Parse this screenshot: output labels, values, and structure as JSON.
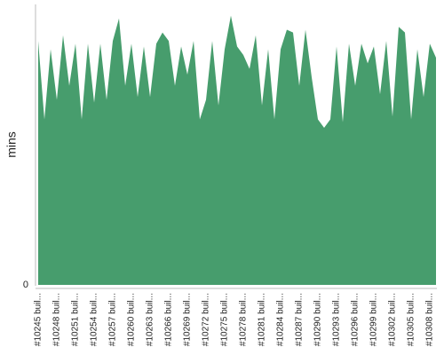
{
  "chart_data": {
    "type": "area",
    "y_label": "mins",
    "color": "#479d6d",
    "categories": [
      "#10245 buil...",
      null,
      null,
      "#10248 buil...",
      null,
      null,
      "#10251 buil...",
      null,
      null,
      "#10254 buil...",
      null,
      null,
      "#10257 buil...",
      null,
      null,
      "#10260 buil...",
      null,
      null,
      "#10263 buil...",
      null,
      null,
      "#10266 buil...",
      null,
      null,
      "#10269 buil...",
      null,
      null,
      "#10272 buil...",
      null,
      null,
      "#10275 buil...",
      null,
      null,
      "#10278 buil...",
      null,
      null,
      "#10281 buil...",
      null,
      null,
      "#10284 buil...",
      null,
      null,
      "#10287 buil...",
      null,
      null,
      "#10290 buil...",
      null,
      null,
      "#10293 buil...",
      null,
      null,
      "#10296 buil...",
      null,
      null,
      "#10299 buil...",
      null,
      null,
      "#10302 buil...",
      null,
      null,
      "#10305 buil...",
      null,
      null,
      "#10308 buil...",
      null
    ],
    "values": [
      8.7,
      5.9,
      8.4,
      6.6,
      8.9,
      7.1,
      8.6,
      5.9,
      8.6,
      6.5,
      8.6,
      6.6,
      8.7,
      9.5,
      7.1,
      8.6,
      6.7,
      8.5,
      6.7,
      8.6,
      9.0,
      8.7,
      7.1,
      8.5,
      7.5,
      8.7,
      5.9,
      6.6,
      8.7,
      6.4,
      8.4,
      9.6,
      8.5,
      8.2,
      7.7,
      8.9,
      6.4,
      8.4,
      5.9,
      8.4,
      9.1,
      9.0,
      7.1,
      9.1,
      7.4,
      5.9,
      5.6,
      5.9,
      8.5,
      5.8,
      8.6,
      7.1,
      8.6,
      7.9,
      8.5,
      6.8,
      8.7,
      6.0,
      9.2,
      9.0,
      5.9,
      8.4,
      6.7,
      8.6,
      8.1
    ],
    "ylim": [
      0,
      10
    ],
    "yticks": [
      0
    ]
  }
}
